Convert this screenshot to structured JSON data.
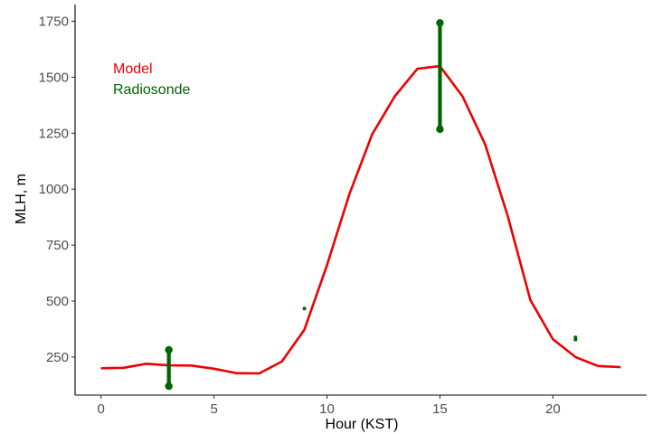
{
  "chart_data": {
    "type": "line",
    "title": "",
    "xlabel": "Hour (KST)",
    "ylabel": "MLH, m",
    "xlim": [
      -1.15,
      24.15
    ],
    "ylim": [
      80,
      1825
    ],
    "x_ticks": [
      0,
      5,
      10,
      15,
      20
    ],
    "y_ticks": [
      250,
      500,
      750,
      1000,
      1250,
      1500,
      1750
    ],
    "grid": false,
    "legend": {
      "placement": "top-left",
      "entries": [
        {
          "label": "Model",
          "color": "#ee0000"
        },
        {
          "label": "Radiosonde",
          "color": "#006400"
        }
      ]
    },
    "series": [
      {
        "name": "Model",
        "kind": "line",
        "color": "#ee0000",
        "x": [
          0,
          1,
          2,
          3,
          4,
          5,
          6,
          7,
          8,
          9,
          10,
          11,
          12,
          13,
          14,
          15,
          16,
          17,
          18,
          19,
          20,
          21,
          22,
          23
        ],
        "y": [
          200,
          202,
          220,
          213,
          212,
          198,
          178,
          177,
          230,
          372,
          660,
          980,
          1245,
          1415,
          1538,
          1550,
          1415,
          1200,
          880,
          505,
          330,
          250,
          210,
          205
        ]
      },
      {
        "name": "Radiosonde",
        "kind": "range",
        "color": "#006400",
        "ranges": [
          {
            "x": 3,
            "min": 120,
            "max": 282
          },
          {
            "x": 9,
            "min": 467,
            "max": 467
          },
          {
            "x": 15,
            "min": 1268,
            "max": 1743
          },
          {
            "x": 21,
            "min": 328,
            "max": 338
          }
        ]
      }
    ]
  }
}
